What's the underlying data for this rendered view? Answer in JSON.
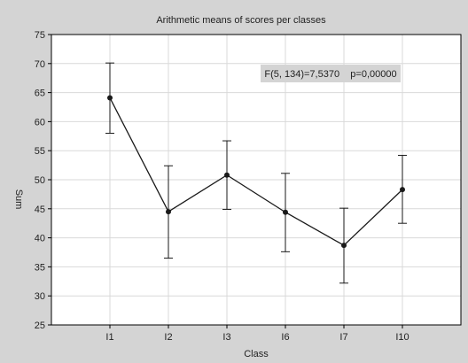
{
  "chart_data": {
    "type": "line",
    "title": "Arithmetic means of scores per classes",
    "xlabel": "Class",
    "ylabel": "Sum",
    "categories": [
      "I1",
      "I2",
      "I3",
      "I6",
      "I7",
      "I10"
    ],
    "series": [
      {
        "values": [
          64.1,
          44.5,
          50.8,
          44.4,
          38.7,
          48.3
        ],
        "error_low": [
          58.0,
          36.5,
          44.9,
          37.6,
          32.2,
          42.5
        ],
        "error_high": [
          70.1,
          52.4,
          56.7,
          51.1,
          45.1,
          54.2
        ]
      }
    ],
    "ylim": [
      25,
      75
    ],
    "yticks": [
      25,
      30,
      35,
      40,
      45,
      50,
      55,
      60,
      65,
      70,
      75
    ],
    "grid": true,
    "annotation": "F(5, 134)=7,5370    p=0,00000",
    "colors": {
      "background": "#d4d4d4",
      "plot_area": "#ffffff",
      "grid": "#d9d9d9",
      "line": "#1a1a1a",
      "annotation_box": "#d4d4d4"
    }
  }
}
